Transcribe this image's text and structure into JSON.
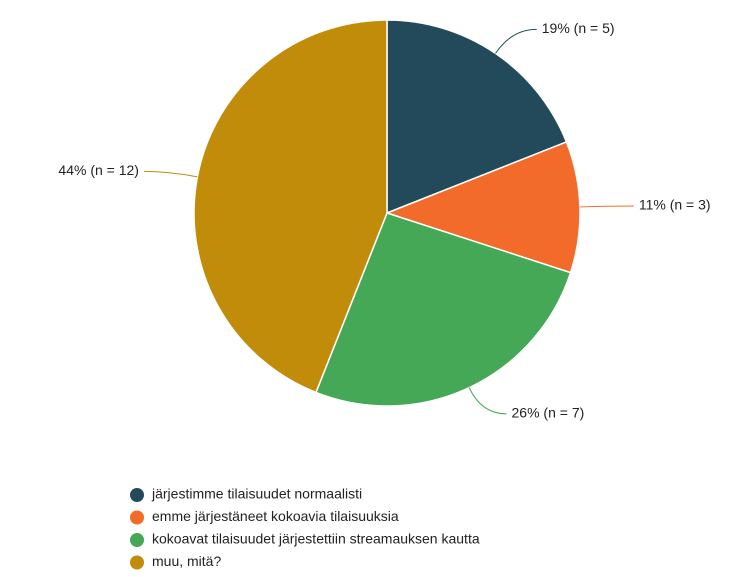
{
  "chart_data": {
    "type": "pie",
    "categories": [
      "järjestimme tilaisuudet normaalisti",
      "emme järjestäneet kokoavia tilaisuuksia",
      "kokoavat tilaisuudet järjestettiin streamauksen kautta",
      "muu, mitä?"
    ],
    "values": [
      19,
      11,
      26,
      44
    ],
    "value_labels": [
      "19% (n = 5)",
      "11% (n = 3)",
      "26% (n = 7)",
      "44% (n = 12)"
    ],
    "colors": [
      "#234a5a",
      "#f26b2a",
      "#44a857",
      "#c08c0a"
    ]
  }
}
